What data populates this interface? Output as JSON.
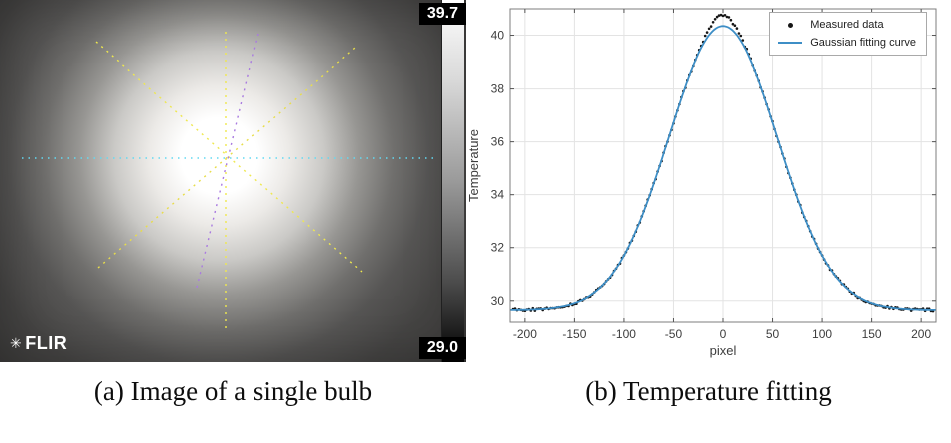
{
  "captions": {
    "a": "(a) Image of a single bulb",
    "b": "(b) Temperature fitting"
  },
  "thermal_image": {
    "logo_text": "FLIR",
    "colorbar": {
      "max_label": "39.7",
      "min_label": "29.0"
    },
    "crosshairs": [
      {
        "name": "horizontal",
        "color": "#62d9f2"
      },
      {
        "name": "vertical",
        "color": "#efe84e"
      },
      {
        "name": "diagonal-tl-br",
        "color": "#efe84e"
      },
      {
        "name": "diagonal-bl-tr",
        "color": "#e8dd4a"
      },
      {
        "name": "steep-diagonal",
        "color": "#a97ae0"
      }
    ]
  },
  "chart_data": {
    "type": "scatter+line",
    "title": "",
    "xlabel": "pixel",
    "ylabel": "Temperature",
    "xlim": [
      -215,
      215
    ],
    "ylim": [
      29.2,
      41
    ],
    "xticks": [
      -200,
      -150,
      -100,
      -50,
      0,
      50,
      100,
      150,
      200
    ],
    "yticks": [
      30,
      32,
      34,
      36,
      38,
      40
    ],
    "grid": true,
    "legend": {
      "position": "top-right",
      "entries": [
        {
          "label": "Measured data",
          "marker": "dot",
          "color": "#161616"
        },
        {
          "label": "Gaussian fitting curve",
          "marker": "line",
          "color": "#3d8ec6"
        }
      ]
    },
    "gaussian_fit": {
      "baseline": 29.65,
      "amplitude": 10.7,
      "center": 0,
      "sigma": 55
    },
    "measured": {
      "peak": 40.75,
      "noise_amplitude": 0.1,
      "peak_extra": 0.42,
      "peak_extra_falloff": 300,
      "points": [
        [
          -200,
          29.62
        ],
        [
          -190,
          29.7
        ],
        [
          -180,
          29.65
        ],
        [
          -170,
          29.78
        ],
        [
          -160,
          29.75
        ],
        [
          -150,
          29.88
        ],
        [
          -140,
          30.1
        ],
        [
          -130,
          30.24
        ],
        [
          -120,
          30.7
        ],
        [
          -110,
          31.02
        ],
        [
          -100,
          31.64
        ],
        [
          -90,
          32.52
        ],
        [
          -80,
          33.3
        ],
        [
          -70,
          34.49
        ],
        [
          -60,
          35.62
        ],
        [
          -50,
          36.66
        ],
        [
          -40,
          37.92
        ],
        [
          -30,
          38.95
        ],
        [
          -20,
          39.78
        ],
        [
          -10,
          40.42
        ],
        [
          0,
          40.75
        ],
        [
          10,
          40.44
        ],
        [
          20,
          39.8
        ],
        [
          30,
          38.92
        ],
        [
          40,
          37.8
        ],
        [
          50,
          36.68
        ],
        [
          60,
          35.48
        ],
        [
          70,
          34.35
        ],
        [
          80,
          33.42
        ],
        [
          90,
          32.4
        ],
        [
          100,
          31.75
        ],
        [
          110,
          31.05
        ],
        [
          120,
          30.58
        ],
        [
          130,
          30.35
        ],
        [
          140,
          30.0
        ],
        [
          150,
          29.85
        ],
        [
          160,
          29.76
        ],
        [
          170,
          29.7
        ],
        [
          180,
          29.64
        ],
        [
          190,
          29.6
        ],
        [
          200,
          29.63
        ]
      ]
    }
  }
}
